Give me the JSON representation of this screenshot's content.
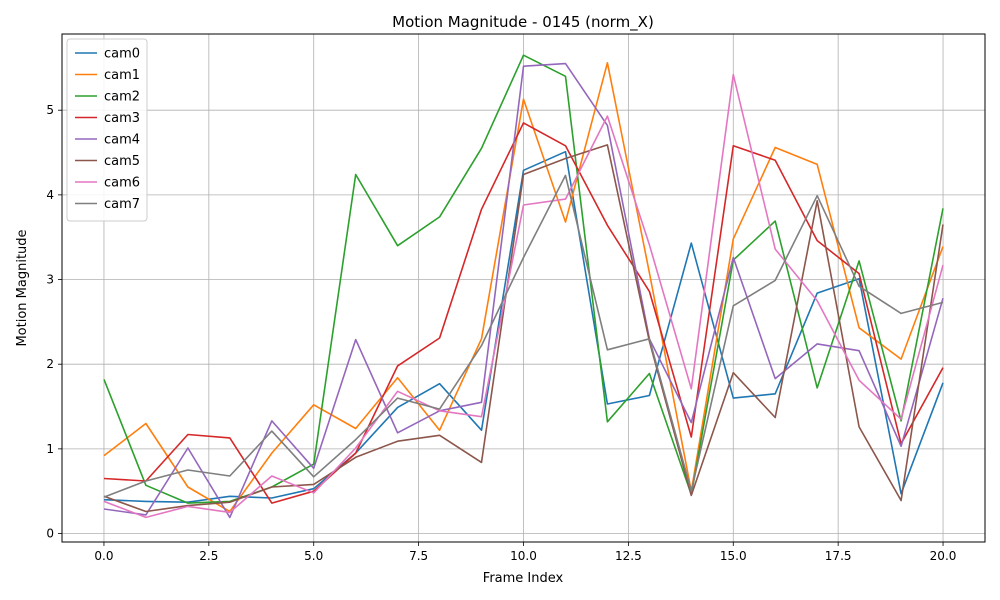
{
  "chart_data": {
    "type": "line",
    "title": "Motion Magnitude - 0145 (norm_X)",
    "xlabel": "Frame Index",
    "ylabel": "Motion Magnitude",
    "xlim": [
      -1,
      21
    ],
    "ylim": [
      -0.1,
      5.9
    ],
    "xticks": [
      0,
      2.5,
      5,
      7.5,
      10,
      12.5,
      15,
      17.5,
      20
    ],
    "xtick_labels": [
      "0.0",
      "2.5",
      "5.0",
      "7.5",
      "10.0",
      "12.5",
      "15.0",
      "17.5",
      "20.0"
    ],
    "yticks": [
      0,
      1,
      2,
      3,
      4,
      5
    ],
    "ytick_labels": [
      "0",
      "1",
      "2",
      "3",
      "4",
      "5"
    ],
    "grid": true,
    "legend_position": "upper-left",
    "x": [
      0,
      1,
      2,
      3,
      4,
      5,
      6,
      7,
      8,
      9,
      10,
      11,
      12,
      13,
      14,
      15,
      16,
      17,
      18,
      19,
      20
    ],
    "series": [
      {
        "name": "cam0",
        "color": "#1f77b4",
        "values": [
          0.4,
          0.38,
          0.37,
          0.44,
          0.42,
          0.53,
          0.95,
          1.49,
          1.77,
          1.22,
          4.29,
          4.51,
          1.53,
          1.63,
          3.43,
          1.6,
          1.65,
          2.84,
          3.01,
          0.47,
          1.78
        ]
      },
      {
        "name": "cam1",
        "color": "#ff7f0e",
        "values": [
          0.92,
          1.3,
          0.55,
          0.26,
          0.95,
          1.52,
          1.24,
          1.84,
          1.22,
          2.3,
          5.13,
          3.68,
          5.56,
          3.08,
          0.5,
          3.48,
          4.56,
          4.36,
          2.43,
          2.06,
          3.39
        ]
      },
      {
        "name": "cam2",
        "color": "#2ca02c",
        "values": [
          1.82,
          0.57,
          0.36,
          0.38,
          0.55,
          0.82,
          4.24,
          3.4,
          3.74,
          4.55,
          5.65,
          5.4,
          1.32,
          1.89,
          0.46,
          3.23,
          3.69,
          1.72,
          3.22,
          1.33,
          3.84
        ]
      },
      {
        "name": "cam3",
        "color": "#d62728",
        "values": [
          0.65,
          0.62,
          1.17,
          1.13,
          0.36,
          0.5,
          0.95,
          1.98,
          2.31,
          3.83,
          4.85,
          4.58,
          3.64,
          2.86,
          1.14,
          4.58,
          4.41,
          3.46,
          3.07,
          1.06,
          1.96
        ]
      },
      {
        "name": "cam4",
        "color": "#9467bd",
        "values": [
          0.29,
          0.22,
          1.01,
          0.19,
          1.33,
          0.77,
          2.29,
          1.19,
          1.45,
          1.55,
          5.52,
          5.55,
          4.82,
          2.3,
          1.31,
          3.26,
          1.83,
          2.24,
          2.16,
          1.03,
          2.78
        ]
      },
      {
        "name": "cam5",
        "color": "#8c564b",
        "values": [
          0.44,
          0.26,
          0.33,
          0.37,
          0.55,
          0.58,
          0.9,
          1.09,
          1.16,
          0.84,
          4.24,
          4.43,
          4.59,
          2.27,
          0.45,
          1.9,
          1.37,
          3.93,
          1.26,
          0.39,
          3.65
        ]
      },
      {
        "name": "cam6",
        "color": "#e377c2",
        "values": [
          0.38,
          0.19,
          0.32,
          0.25,
          0.68,
          0.48,
          1.01,
          1.68,
          1.45,
          1.38,
          3.88,
          3.95,
          4.93,
          3.41,
          1.71,
          5.42,
          3.36,
          2.75,
          1.81,
          1.35,
          3.17
        ]
      },
      {
        "name": "cam7",
        "color": "#7f7f7f",
        "values": [
          0.43,
          0.62,
          0.75,
          0.68,
          1.21,
          0.67,
          1.11,
          1.6,
          1.47,
          2.22,
          3.26,
          4.23,
          2.17,
          2.3,
          0.5,
          2.69,
          2.99,
          3.99,
          2.92,
          2.6,
          2.73
        ]
      }
    ]
  }
}
